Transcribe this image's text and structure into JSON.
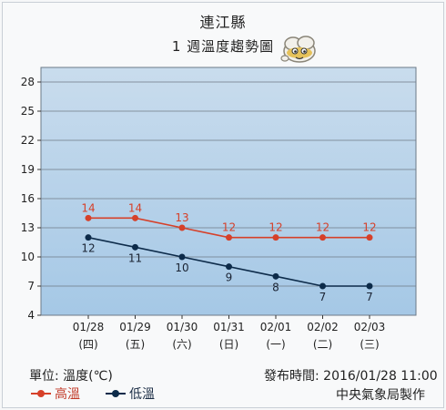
{
  "header": {
    "location": "連江縣",
    "subtitle": "1 週溫度趨勢圖",
    "mascot_icon": "cloud-mascot-icon"
  },
  "footer": {
    "unit_label": "單位: 溫度(℃)",
    "issued": "發布時間: 2016/01/28 11:00",
    "maker": "中央氣象局製作"
  },
  "colors": {
    "high": "#d64029",
    "low": "#0d2b4a",
    "plot_top": "#c9dced",
    "plot_bottom": "#a5c8e6"
  },
  "chart_data": {
    "type": "line",
    "categories": [
      "01/28",
      "01/29",
      "01/30",
      "01/31",
      "02/01",
      "02/02",
      "02/03"
    ],
    "weekdays": [
      "(四)",
      "(五)",
      "(六)",
      "(日)",
      "(一)",
      "(二)",
      "(三)"
    ],
    "series": [
      {
        "name": "高溫",
        "values": [
          14,
          14,
          13,
          12,
          12,
          12,
          12
        ],
        "color": "#d64029"
      },
      {
        "name": "低溫",
        "values": [
          12,
          11,
          10,
          9,
          8,
          7,
          7
        ],
        "color": "#0d2b4a"
      }
    ],
    "yticks": [
      4,
      7,
      10,
      13,
      16,
      19,
      22,
      25,
      28
    ],
    "ylim": [
      4,
      29.5
    ],
    "grid": true,
    "legend": "bottom-left"
  }
}
